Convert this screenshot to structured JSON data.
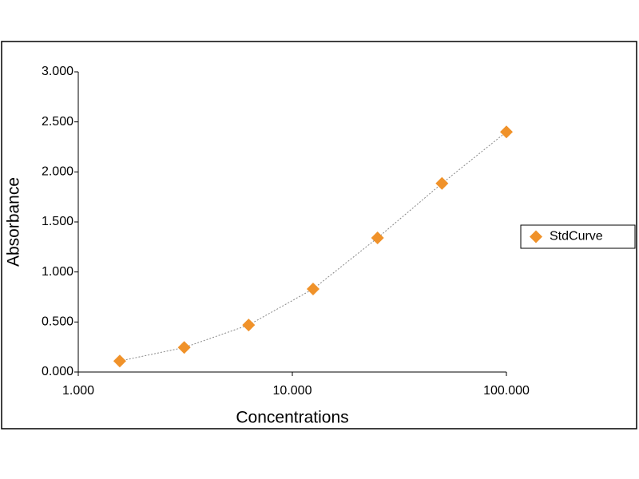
{
  "chart_data": {
    "type": "scatter",
    "x_label": "Concentrations",
    "y_label": "Absorbance",
    "x": [
      1.5625,
      3.125,
      6.25,
      12.5,
      25,
      50,
      100
    ],
    "series": [
      {
        "name": "StdCurve",
        "color": "#f0922a",
        "values": [
          0.11,
          0.245,
          0.47,
          0.83,
          1.34,
          1.885,
          2.4
        ]
      }
    ],
    "xscale": "log",
    "xlim": [
      1,
      100
    ],
    "xticks": [
      {
        "value": 1,
        "label": "1.000"
      },
      {
        "value": 10,
        "label": "10.000"
      },
      {
        "value": 100,
        "label": "100.000"
      }
    ],
    "ylim": [
      0,
      3
    ],
    "yticks": [
      {
        "value": 0,
        "label": "0.000"
      },
      {
        "value": 0.5,
        "label": "0.500"
      },
      {
        "value": 1,
        "label": "1.000"
      },
      {
        "value": 1.5,
        "label": "1.500"
      },
      {
        "value": 2,
        "label": "2.000"
      },
      {
        "value": 2.5,
        "label": "2.500"
      },
      {
        "value": 3,
        "label": "3.000"
      }
    ],
    "legend": "right",
    "trend_line": true
  }
}
